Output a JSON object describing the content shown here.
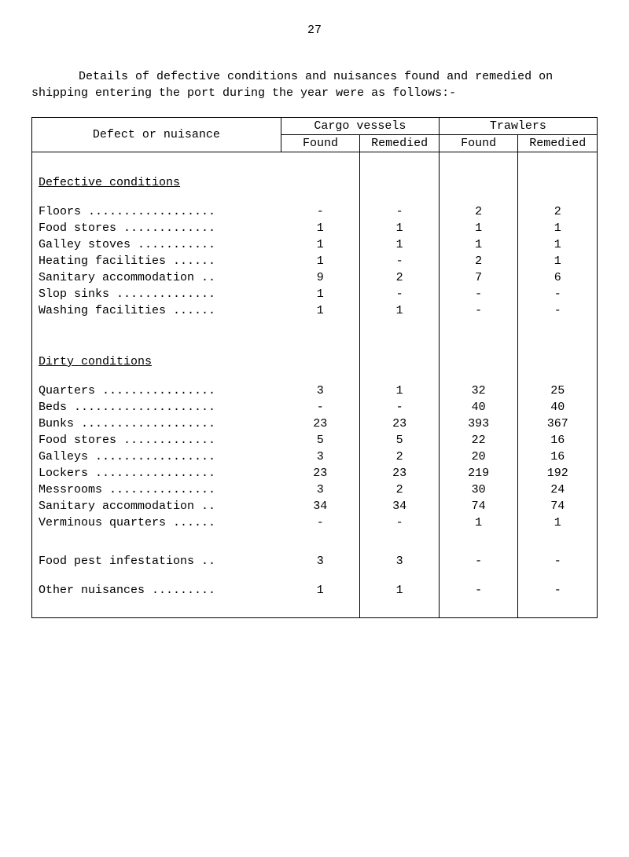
{
  "page_number": "27",
  "intro": "Details of defective conditions and nuisances found and remedied on shipping entering the port during the year were as follows:-",
  "table": {
    "corner_header": "Defect or nuisance",
    "group_headers": [
      "Cargo vessels",
      "Trawlers"
    ],
    "sub_headers": [
      "Found",
      "Remedied",
      "Found",
      "Remedied"
    ],
    "sections": [
      {
        "title": "Defective conditions",
        "rows": [
          {
            "label": "Floors ..................",
            "cells": [
              "-",
              "-",
              "2",
              "2"
            ]
          },
          {
            "label": "Food stores .............",
            "cells": [
              "1",
              "1",
              "1",
              "1"
            ]
          },
          {
            "label": "Galley stoves ...........",
            "cells": [
              "1",
              "1",
              "1",
              "1"
            ]
          },
          {
            "label": "Heating facilities ......",
            "cells": [
              "1",
              "-",
              "2",
              "1"
            ]
          },
          {
            "label": "Sanitary accommodation ..",
            "cells": [
              "9",
              "2",
              "7",
              "6"
            ]
          },
          {
            "label": "Slop sinks ..............",
            "cells": [
              "1",
              "-",
              "-",
              "-"
            ]
          },
          {
            "label": "Washing facilities ......",
            "cells": [
              "1",
              "1",
              "-",
              "-"
            ]
          }
        ]
      },
      {
        "title": "Dirty conditions",
        "rows": [
          {
            "label": "Quarters ................",
            "cells": [
              "3",
              "1",
              "32",
              "25"
            ]
          },
          {
            "label": "Beds ....................",
            "cells": [
              "-",
              "-",
              "40",
              "40"
            ]
          },
          {
            "label": "Bunks ...................",
            "cells": [
              "23",
              "23",
              "393",
              "367"
            ]
          },
          {
            "label": "Food stores .............",
            "cells": [
              "5",
              "5",
              "22",
              "16"
            ]
          },
          {
            "label": "Galleys .................",
            "cells": [
              "3",
              "2",
              "20",
              "16"
            ]
          },
          {
            "label": "Lockers .................",
            "cells": [
              "23",
              "23",
              "219",
              "192"
            ]
          },
          {
            "label": "Messrooms ...............",
            "cells": [
              "3",
              "2",
              "30",
              "24"
            ]
          },
          {
            "label": "Sanitary accommodation ..",
            "cells": [
              "34",
              "34",
              "74",
              "74"
            ]
          },
          {
            "label": "Verminous quarters ......",
            "cells": [
              "-",
              "-",
              "1",
              "1"
            ]
          }
        ]
      }
    ],
    "trailing_rows": [
      {
        "label": "Food pest infestations ..",
        "cells": [
          "3",
          "3",
          "-",
          "-"
        ]
      },
      {
        "label": "Other nuisances .........",
        "cells": [
          "1",
          "1",
          "-",
          "-"
        ]
      }
    ]
  }
}
